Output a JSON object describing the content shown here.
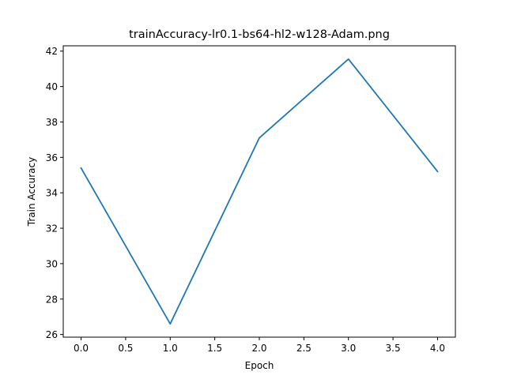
{
  "chart_data": {
    "type": "line",
    "title": "trainAccuracy-lr0.1-bs64-hl2-w128-Adam.png",
    "xlabel": "Epoch",
    "ylabel": "Train Accuracy",
    "xlim": [
      -0.2,
      4.2
    ],
    "ylim": [
      25.85,
      42.3
    ],
    "xticks": [
      0.0,
      0.5,
      1.0,
      1.5,
      2.0,
      2.5,
      3.0,
      3.5,
      4.0
    ],
    "xtick_labels": [
      "0.0",
      "0.5",
      "1.0",
      "1.5",
      "2.0",
      "2.5",
      "3.0",
      "3.5",
      "4.0"
    ],
    "yticks": [
      26,
      28,
      30,
      32,
      34,
      36,
      38,
      40,
      42
    ],
    "ytick_labels": [
      "26",
      "28",
      "30",
      "32",
      "34",
      "36",
      "38",
      "40",
      "42"
    ],
    "grid": false,
    "series": [
      {
        "x": [
          0,
          1,
          2,
          3,
          4
        ],
        "values": [
          35.4,
          26.6,
          37.1,
          41.55,
          35.2
        ],
        "color": "#1f77b4"
      }
    ]
  }
}
